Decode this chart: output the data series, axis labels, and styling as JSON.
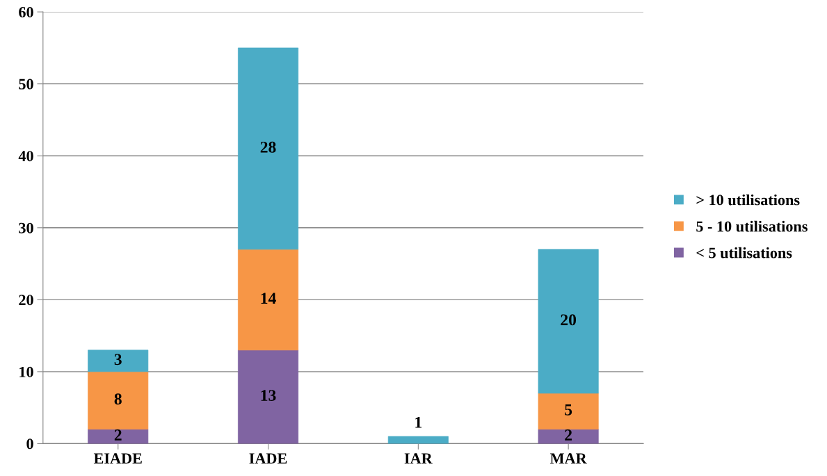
{
  "chart_data": {
    "type": "bar",
    "stacked": true,
    "categories": [
      "EIADE",
      "IADE",
      "IAR",
      "MAR"
    ],
    "series": [
      {
        "name": "< 5 utilisations",
        "color": "#8064a2",
        "values": [
          2,
          13,
          null,
          2
        ]
      },
      {
        "name": "5 - 10 utilisations",
        "color": "#f79646",
        "values": [
          8,
          14,
          null,
          5
        ]
      },
      {
        "name": "> 10 utilisations",
        "color": "#4bacc6",
        "values": [
          3,
          28,
          1,
          20
        ]
      }
    ],
    "ylim": [
      0,
      60
    ],
    "yticks": [
      0,
      10,
      20,
      30,
      40,
      50,
      60
    ],
    "grid": "y",
    "legend": "right",
    "data_labels": true
  }
}
